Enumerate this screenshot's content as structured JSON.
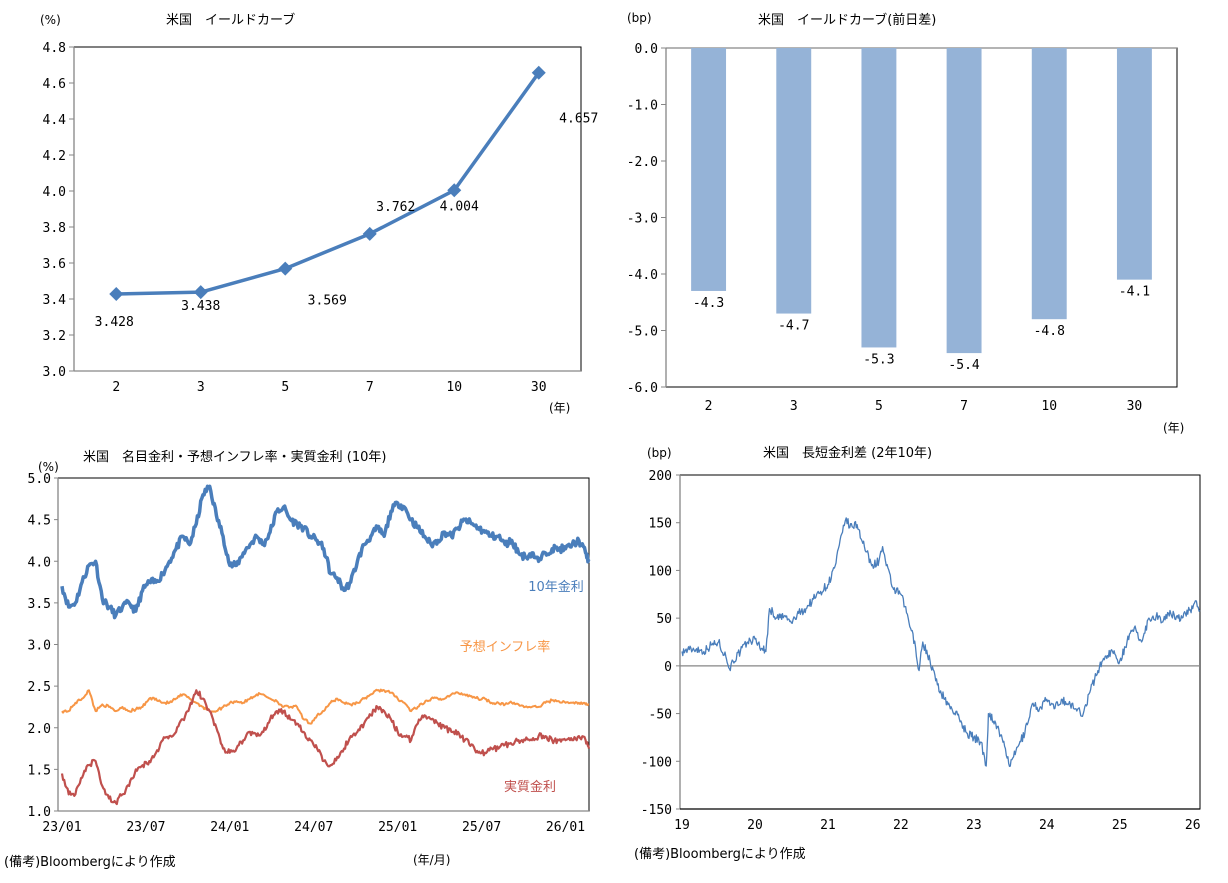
{
  "chart_data": [
    {
      "id": "yield-curve",
      "type": "line",
      "title": "米国　イールドカーブ",
      "ylabel": "(%)",
      "xlabel": "(年)",
      "categories": [
        "2",
        "3",
        "5",
        "7",
        "10",
        "30"
      ],
      "values": [
        3.428,
        3.438,
        3.569,
        3.762,
        4.004,
        4.657
      ],
      "data_labels": [
        "3.428",
        "3.438",
        "3.569",
        "3.762",
        "4.004",
        "4.657"
      ],
      "ylim": [
        3.0,
        4.8
      ],
      "yticks": [
        "3.0",
        "3.2",
        "3.4",
        "3.6",
        "3.8",
        "4.0",
        "4.2",
        "4.4",
        "4.6",
        "4.8"
      ],
      "marker": "diamond",
      "color": "#4a7ebb",
      "grid": false
    },
    {
      "id": "yield-curve-change",
      "type": "bar",
      "title": "米国　イールドカーブ(前日差)",
      "ylabel": "(bp)",
      "xlabel": "(年)",
      "categories": [
        "2",
        "3",
        "5",
        "7",
        "10",
        "30"
      ],
      "values": [
        -4.3,
        -4.7,
        -5.3,
        -5.4,
        -4.8,
        -4.1
      ],
      "data_labels": [
        "-4.3",
        "-4.7",
        "-5.3",
        "-5.4",
        "-4.8",
        "-4.1"
      ],
      "ylim": [
        -6.0,
        0.0
      ],
      "yticks": [
        "0.0",
        "-1.0",
        "-2.0",
        "-3.0",
        "-4.0",
        "-5.0",
        "-6.0"
      ],
      "color": "#95b3d7",
      "grid": false
    },
    {
      "id": "nominal-inflation-real",
      "type": "line",
      "title": "米国　名目金利・予想インフレ率・実質金利 (10年)",
      "ylabel": "(%)",
      "xlabel": "(年/月)",
      "xticks": [
        "23/01",
        "23/07",
        "24/01",
        "24/07",
        "25/01",
        "25/07",
        "26/01"
      ],
      "x_range_years": [
        2023.0,
        2026.14
      ],
      "ylim": [
        1.0,
        5.0
      ],
      "yticks": [
        "1.0",
        "1.5",
        "2.0",
        "2.5",
        "3.0",
        "3.5",
        "4.0",
        "4.5",
        "5.0"
      ],
      "note": "(備考)Bloombergにより作成",
      "x": [
        2023.0,
        2023.04,
        2023.08,
        2023.12,
        2023.16,
        2023.2,
        2023.24,
        2023.28,
        2023.32,
        2023.36,
        2023.4,
        2023.44,
        2023.48,
        2023.52,
        2023.56,
        2023.6,
        2023.64,
        2023.68,
        2023.72,
        2023.76,
        2023.8,
        2023.84,
        2023.88,
        2023.92,
        2023.96,
        2024.0,
        2024.04,
        2024.08,
        2024.12,
        2024.16,
        2024.2,
        2024.24,
        2024.28,
        2024.32,
        2024.36,
        2024.4,
        2024.44,
        2024.48,
        2024.52,
        2024.56,
        2024.6,
        2024.64,
        2024.68,
        2024.72,
        2024.76,
        2024.8,
        2024.84,
        2024.88,
        2024.92,
        2024.96,
        2025.0,
        2025.04,
        2025.08,
        2025.12,
        2025.16,
        2025.2,
        2025.24,
        2025.28,
        2025.32,
        2025.36,
        2025.4,
        2025.44,
        2025.48,
        2025.52,
        2025.56,
        2025.6,
        2025.64,
        2025.68,
        2025.72,
        2025.76,
        2025.8,
        2025.84,
        2025.88,
        2025.92,
        2025.96,
        2026.0,
        2026.04,
        2026.08,
        2026.12,
        2026.14
      ],
      "series": [
        {
          "name": "10年金利",
          "color": "#4a7ebb",
          "values": [
            3.7,
            3.45,
            3.5,
            3.75,
            3.95,
            4.0,
            3.55,
            3.45,
            3.35,
            3.45,
            3.5,
            3.4,
            3.65,
            3.75,
            3.75,
            3.85,
            4.0,
            4.15,
            4.3,
            4.2,
            4.45,
            4.8,
            4.9,
            4.55,
            4.3,
            3.95,
            3.95,
            4.1,
            4.2,
            4.3,
            4.2,
            4.35,
            4.6,
            4.65,
            4.5,
            4.45,
            4.4,
            4.3,
            4.25,
            4.15,
            3.85,
            3.8,
            3.65,
            3.75,
            4.0,
            4.2,
            4.3,
            4.4,
            4.3,
            4.6,
            4.7,
            4.65,
            4.5,
            4.4,
            4.3,
            4.2,
            4.25,
            4.35,
            4.3,
            4.4,
            4.5,
            4.45,
            4.4,
            4.35,
            4.3,
            4.3,
            4.2,
            4.25,
            4.1,
            4.05,
            4.1,
            4.0,
            4.1,
            4.15,
            4.15,
            4.15,
            4.2,
            4.25,
            4.1,
            4.0
          ]
        },
        {
          "name": "予想インフレ率",
          "color": "#f79646",
          "values": [
            2.2,
            2.2,
            2.3,
            2.35,
            2.45,
            2.2,
            2.28,
            2.25,
            2.2,
            2.25,
            2.2,
            2.22,
            2.25,
            2.35,
            2.35,
            2.3,
            2.3,
            2.35,
            2.4,
            2.35,
            2.3,
            2.25,
            2.2,
            2.2,
            2.25,
            2.3,
            2.32,
            2.3,
            2.35,
            2.4,
            2.4,
            2.35,
            2.32,
            2.25,
            2.25,
            2.25,
            2.1,
            2.05,
            2.15,
            2.2,
            2.3,
            2.35,
            2.3,
            2.28,
            2.3,
            2.35,
            2.4,
            2.45,
            2.45,
            2.42,
            2.35,
            2.3,
            2.2,
            2.25,
            2.3,
            2.35,
            2.35,
            2.35,
            2.4,
            2.42,
            2.4,
            2.38,
            2.35,
            2.35,
            2.3,
            2.3,
            2.28,
            2.3,
            2.28,
            2.25,
            2.25,
            2.25,
            2.3,
            2.33,
            2.32,
            2.3,
            2.3,
            2.3,
            2.28,
            2.28
          ]
        },
        {
          "name": "実質金利",
          "color": "#c0504d",
          "values": [
            1.45,
            1.2,
            1.2,
            1.4,
            1.55,
            1.6,
            1.3,
            1.15,
            1.1,
            1.2,
            1.3,
            1.5,
            1.55,
            1.6,
            1.7,
            1.85,
            1.9,
            1.95,
            2.1,
            2.25,
            2.45,
            2.35,
            2.2,
            2.0,
            1.75,
            1.7,
            1.75,
            1.85,
            1.95,
            1.9,
            1.95,
            2.1,
            2.2,
            2.2,
            2.1,
            2.05,
            1.95,
            1.85,
            1.75,
            1.6,
            1.55,
            1.65,
            1.75,
            1.9,
            1.95,
            2.05,
            2.15,
            2.25,
            2.2,
            2.1,
            1.95,
            1.9,
            1.85,
            2.05,
            2.15,
            2.1,
            2.05,
            2.0,
            1.95,
            1.95,
            1.85,
            1.8,
            1.7,
            1.7,
            1.75,
            1.75,
            1.8,
            1.8,
            1.85,
            1.85,
            1.85,
            1.9,
            1.9,
            1.85,
            1.85,
            1.85,
            1.85,
            1.9,
            1.85,
            1.75
          ]
        }
      ],
      "series_labels": [
        "10年金利",
        "予想インフレ率",
        "実質金利"
      ]
    },
    {
      "id": "term-spread",
      "type": "line",
      "title": "米国　長短金利差 (2年10年)",
      "ylabel": "(bp)",
      "xlabel": "",
      "xticks": [
        "19",
        "20",
        "21",
        "22",
        "23",
        "24",
        "25",
        "26"
      ],
      "x_range_years": [
        2019.0,
        2026.1
      ],
      "ylim": [
        -150,
        200
      ],
      "yticks": [
        "200",
        "150",
        "100",
        "50",
        "0",
        "-50",
        "-100",
        "-150"
      ],
      "note": "(備考)Bloombergにより作成",
      "x": [
        2019.0,
        2019.1,
        2019.2,
        2019.3,
        2019.4,
        2019.5,
        2019.6,
        2019.65,
        2019.7,
        2019.8,
        2019.9,
        2020.0,
        2020.1,
        2020.15,
        2020.2,
        2020.3,
        2020.4,
        2020.5,
        2020.6,
        2020.7,
        2020.8,
        2020.9,
        2021.0,
        2021.1,
        2021.2,
        2021.25,
        2021.3,
        2021.4,
        2021.5,
        2021.6,
        2021.7,
        2021.75,
        2021.8,
        2021.9,
        2022.0,
        2022.1,
        2022.2,
        2022.25,
        2022.3,
        2022.4,
        2022.5,
        2022.6,
        2022.7,
        2022.8,
        2022.9,
        2023.0,
        2023.1,
        2023.17,
        2023.2,
        2023.3,
        2023.4,
        2023.5,
        2023.6,
        2023.7,
        2023.8,
        2023.9,
        2024.0,
        2024.1,
        2024.2,
        2024.3,
        2024.4,
        2024.5,
        2024.6,
        2024.7,
        2024.8,
        2024.9,
        2025.0,
        2025.1,
        2025.2,
        2025.3,
        2025.4,
        2025.5,
        2025.6,
        2025.7,
        2025.8,
        2025.9,
        2026.0,
        2026.05,
        2026.1
      ],
      "values": [
        15,
        17,
        18,
        15,
        22,
        25,
        10,
        -3,
        5,
        15,
        25,
        28,
        18,
        15,
        60,
        50,
        52,
        45,
        55,
        60,
        70,
        78,
        85,
        105,
        140,
        155,
        145,
        148,
        125,
        105,
        110,
        125,
        105,
        80,
        75,
        50,
        20,
        -5,
        25,
        5,
        -20,
        -35,
        -45,
        -55,
        -70,
        -75,
        -80,
        -105,
        -50,
        -60,
        -80,
        -105,
        -85,
        -70,
        -40,
        -45,
        -35,
        -45,
        -35,
        -40,
        -45,
        -50,
        -25,
        -5,
        10,
        15,
        5,
        25,
        40,
        25,
        50,
        52,
        48,
        55,
        50,
        55,
        60,
        68,
        58
      ]
    }
  ],
  "notes": {
    "left": "(備考)Bloombergにより作成",
    "right": "(備考)Bloombergにより作成"
  }
}
